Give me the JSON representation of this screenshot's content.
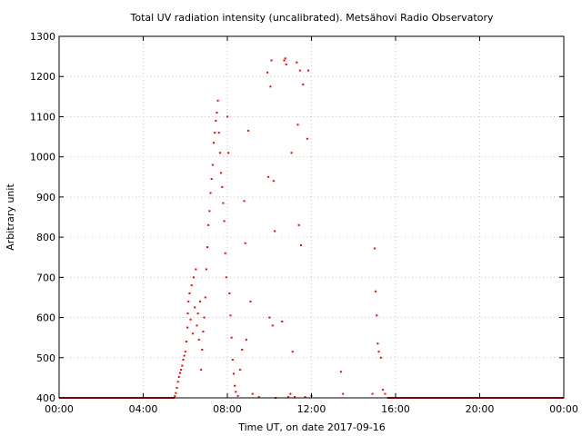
{
  "chart_data": {
    "type": "scatter",
    "title": "Total UV radiation intensity (uncalibrated). Metsähovi Radio Observatory",
    "xlabel": "Time UT, on date 2017-09-16",
    "ylabel": "Arbitrary unit",
    "xlim": [
      0,
      24
    ],
    "ylim": [
      400,
      1300
    ],
    "x_ticks": [
      {
        "value": 0,
        "label": "00:00"
      },
      {
        "value": 4,
        "label": "04:00"
      },
      {
        "value": 8,
        "label": "08:00"
      },
      {
        "value": 12,
        "label": "12:00"
      },
      {
        "value": 16,
        "label": "16:00"
      },
      {
        "value": 20,
        "label": "20:00"
      },
      {
        "value": 24,
        "label": "00:00"
      }
    ],
    "y_ticks": [
      {
        "value": 400,
        "label": "400"
      },
      {
        "value": 500,
        "label": "500"
      },
      {
        "value": 600,
        "label": "600"
      },
      {
        "value": 700,
        "label": "700"
      },
      {
        "value": 800,
        "label": "800"
      },
      {
        "value": 900,
        "label": "900"
      },
      {
        "value": 1000,
        "label": "1000"
      },
      {
        "value": 1100,
        "label": "1100"
      },
      {
        "value": 1200,
        "label": "1200"
      },
      {
        "value": 1300,
        "label": "1300"
      }
    ],
    "grid": true,
    "color": "#ff0000",
    "baseline": {
      "y": 400,
      "ranges": [
        [
          0,
          5.5
        ],
        [
          15.6,
          24
        ]
      ]
    },
    "points": [
      [
        5.5,
        404
      ],
      [
        5.55,
        412
      ],
      [
        5.6,
        425
      ],
      [
        5.65,
        440
      ],
      [
        5.7,
        452
      ],
      [
        5.75,
        462
      ],
      [
        5.8,
        470
      ],
      [
        5.85,
        480
      ],
      [
        5.9,
        495
      ],
      [
        5.95,
        505
      ],
      [
        6.0,
        515
      ],
      [
        6.05,
        540
      ],
      [
        6.1,
        575
      ],
      [
        6.12,
        610
      ],
      [
        6.15,
        640
      ],
      [
        6.2,
        660
      ],
      [
        6.25,
        595
      ],
      [
        6.3,
        680
      ],
      [
        6.35,
        560
      ],
      [
        6.4,
        700
      ],
      [
        6.45,
        625
      ],
      [
        6.5,
        720
      ],
      [
        6.55,
        580
      ],
      [
        6.6,
        610
      ],
      [
        6.65,
        545
      ],
      [
        6.7,
        640
      ],
      [
        6.75,
        470
      ],
      [
        6.8,
        520
      ],
      [
        6.85,
        565
      ],
      [
        6.9,
        600
      ],
      [
        6.95,
        650
      ],
      [
        7.0,
        720
      ],
      [
        7.05,
        775
      ],
      [
        7.1,
        830
      ],
      [
        7.15,
        865
      ],
      [
        7.2,
        910
      ],
      [
        7.25,
        945
      ],
      [
        7.3,
        980
      ],
      [
        7.35,
        1035
      ],
      [
        7.4,
        1060
      ],
      [
        7.45,
        1090
      ],
      [
        7.5,
        1110
      ],
      [
        7.55,
        1140
      ],
      [
        7.6,
        1060
      ],
      [
        7.65,
        1010
      ],
      [
        7.7,
        960
      ],
      [
        7.75,
        925
      ],
      [
        7.8,
        885
      ],
      [
        7.85,
        840
      ],
      [
        7.9,
        760
      ],
      [
        7.95,
        700
      ],
      [
        8.0,
        1100
      ],
      [
        8.05,
        1010
      ],
      [
        8.1,
        660
      ],
      [
        8.15,
        605
      ],
      [
        8.2,
        550
      ],
      [
        8.25,
        495
      ],
      [
        8.3,
        460
      ],
      [
        8.35,
        430
      ],
      [
        8.4,
        415
      ],
      [
        8.5,
        405
      ],
      [
        8.6,
        470
      ],
      [
        8.7,
        520
      ],
      [
        8.8,
        890
      ],
      [
        8.85,
        785
      ],
      [
        8.9,
        545
      ],
      [
        9.0,
        1065
      ],
      [
        9.1,
        640
      ],
      [
        9.2,
        410
      ],
      [
        9.5,
        402
      ],
      [
        9.9,
        1210
      ],
      [
        9.95,
        950
      ],
      [
        10.0,
        600
      ],
      [
        10.05,
        1175
      ],
      [
        10.1,
        1240
      ],
      [
        10.15,
        580
      ],
      [
        10.2,
        940
      ],
      [
        10.25,
        815
      ],
      [
        10.3,
        400
      ],
      [
        10.6,
        590
      ],
      [
        10.7,
        1240
      ],
      [
        10.75,
        1245
      ],
      [
        10.8,
        1230
      ],
      [
        10.9,
        402
      ],
      [
        11.0,
        410
      ],
      [
        11.05,
        1010
      ],
      [
        11.1,
        515
      ],
      [
        11.2,
        402
      ],
      [
        11.3,
        1235
      ],
      [
        11.35,
        1080
      ],
      [
        11.4,
        830
      ],
      [
        11.45,
        1215
      ],
      [
        11.5,
        780
      ],
      [
        11.6,
        1180
      ],
      [
        11.7,
        402
      ],
      [
        11.8,
        1045
      ],
      [
        11.85,
        1215
      ],
      [
        12.0,
        405
      ],
      [
        13.4,
        465
      ],
      [
        13.5,
        410
      ],
      [
        14.9,
        410
      ],
      [
        15.0,
        772
      ],
      [
        15.05,
        665
      ],
      [
        15.1,
        605
      ],
      [
        15.15,
        535
      ],
      [
        15.2,
        515
      ],
      [
        15.3,
        500
      ],
      [
        15.4,
        420
      ],
      [
        15.5,
        410
      ]
    ]
  }
}
